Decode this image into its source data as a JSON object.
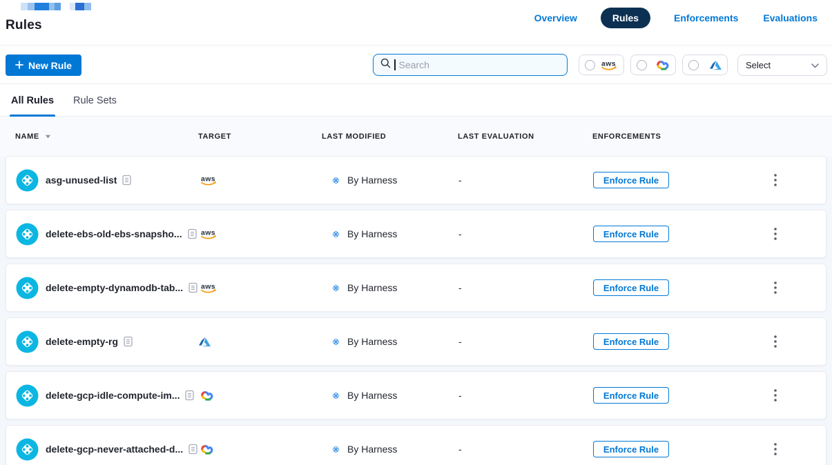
{
  "page": {
    "title": "Rules"
  },
  "breadcrumb_redacted_blocks": [
    {
      "c": "#cde2f6",
      "w": 10
    },
    {
      "c": "#9cc3ee",
      "w": 10
    },
    {
      "c": "#2180de",
      "w": 21
    },
    {
      "c": "#94bfee",
      "w": 8
    },
    {
      "c": "#5b9fe6",
      "w": 9
    },
    {
      "c": "",
      "w": 13
    },
    {
      "c": "#d9e8f8",
      "w": 8
    },
    {
      "c": "#2b6fd2",
      "w": 13
    },
    {
      "c": "#8fbcec",
      "w": 10
    }
  ],
  "nav": {
    "items": [
      {
        "label": "Overview",
        "active": false
      },
      {
        "label": "Rules",
        "active": true
      },
      {
        "label": "Enforcements",
        "active": false
      },
      {
        "label": "Evaluations",
        "active": false
      }
    ]
  },
  "toolbar": {
    "new_rule": {
      "label": "New Rule",
      "icon": "plus-icon"
    },
    "search": {
      "placeholder": "Search",
      "icon": "search-icon"
    },
    "provider_filters": [
      {
        "id": "aws",
        "label": "AWS",
        "icon": "aws-logo-icon",
        "checked": false
      },
      {
        "id": "gcp",
        "label": "Google Cloud",
        "icon": "gcp-logo-icon",
        "checked": false
      },
      {
        "id": "azure",
        "label": "Azure",
        "icon": "azure-logo-icon",
        "checked": false
      }
    ],
    "cloud_select": {
      "value": "Select",
      "icon": "chevron-down-icon"
    }
  },
  "tabs": [
    {
      "label": "All Rules",
      "active": true
    },
    {
      "label": "Rule Sets",
      "active": false
    }
  ],
  "table": {
    "columns": [
      {
        "label": "NAME",
        "sortable": true
      },
      {
        "label": "TARGET",
        "sortable": false
      },
      {
        "label": "LAST MODIFIED",
        "sortable": false
      },
      {
        "label": "LAST EVALUATION",
        "sortable": false
      },
      {
        "label": "ENFORCEMENTS",
        "sortable": false
      }
    ],
    "rows": [
      {
        "name": "asg-unused-list",
        "target": "aws",
        "last_modified": "By Harness",
        "last_evaluation": "-",
        "action_label": "Enforce Rule"
      },
      {
        "name": "delete-ebs-old-ebs-snapsho...",
        "target": "aws",
        "last_modified": "By Harness",
        "last_evaluation": "-",
        "action_label": "Enforce Rule"
      },
      {
        "name": "delete-empty-dynamodb-tab...",
        "target": "aws",
        "last_modified": "By Harness",
        "last_evaluation": "-",
        "action_label": "Enforce Rule"
      },
      {
        "name": "delete-empty-rg",
        "target": "azure",
        "last_modified": "By Harness",
        "last_evaluation": "-",
        "action_label": "Enforce Rule"
      },
      {
        "name": "delete-gcp-idle-compute-im...",
        "target": "gcp",
        "last_modified": "By Harness",
        "last_evaluation": "-",
        "action_label": "Enforce Rule"
      },
      {
        "name": "delete-gcp-never-attached-d...",
        "target": "gcp",
        "last_modified": "By Harness",
        "last_evaluation": "-",
        "action_label": "Enforce Rule"
      }
    ]
  },
  "colors": {
    "primary": "#0278d5",
    "nav_pill_bg": "#0b3052",
    "rule_icon_cyan": "#0bb7e2",
    "harness_byline_blue": "#4f9ce7",
    "aws_text": "#252f3e",
    "aws_smile": "#f79400",
    "gcp_blue": "#4285f4",
    "gcp_red": "#ea4335",
    "gcp_yellow": "#fbbc05",
    "gcp_green": "#34a853",
    "azure_dark": "#1b66b5",
    "azure_light": "#3ca4e6",
    "table_header_bg": "#f8fafd",
    "rows_area_bg": "#f4f7fb"
  }
}
